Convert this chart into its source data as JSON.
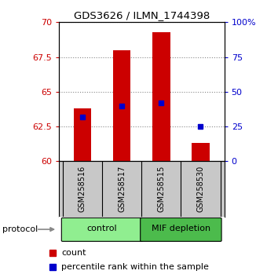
{
  "title": "GDS3626 / ILMN_1744398",
  "samples": [
    "GSM258516",
    "GSM258517",
    "GSM258515",
    "GSM258530"
  ],
  "group_info": [
    {
      "indices": [
        0,
        1
      ],
      "name": "control",
      "color": "#90EE90"
    },
    {
      "indices": [
        2,
        3
      ],
      "name": "MIF depletion",
      "color": "#4CBB4C"
    }
  ],
  "bar_bottoms": [
    60,
    60,
    60,
    60
  ],
  "bar_tops": [
    63.8,
    68.0,
    69.3,
    61.3
  ],
  "percentile_values": [
    63.2,
    64.0,
    64.2,
    62.5
  ],
  "ylim": [
    60,
    70
  ],
  "yticks_left": [
    60,
    62.5,
    65,
    67.5,
    70
  ],
  "yticks_right": [
    0,
    25,
    50,
    75,
    100
  ],
  "ytick_labels_left": [
    "60",
    "62.5",
    "65",
    "67.5",
    "70"
  ],
  "ytick_labels_right": [
    "0",
    "25",
    "50",
    "75",
    "100%"
  ],
  "left_tick_color": "#CC0000",
  "right_tick_color": "#0000CC",
  "bar_color": "#CC0000",
  "percentile_color": "#0000CC",
  "grid_color": "#888888",
  "bg_color": "#FFFFFF",
  "plot_bg_color": "#FFFFFF",
  "sample_box_color": "#C8C8C8",
  "bar_width": 0.45
}
